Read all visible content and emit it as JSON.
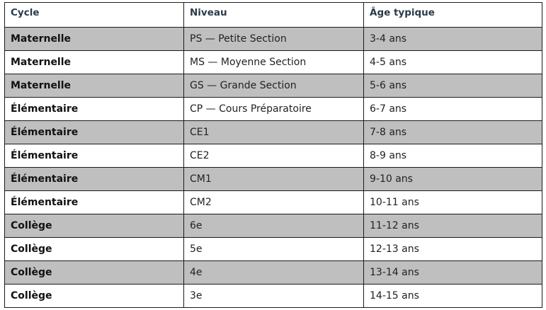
{
  "table": {
    "headers": [
      "Cycle",
      "Niveau",
      "Âge typique"
    ],
    "rows": [
      {
        "cycle": "Maternelle",
        "niveau": "PS — Petite Section",
        "age": "3-4 ans"
      },
      {
        "cycle": "Maternelle",
        "niveau": "MS — Moyenne Section",
        "age": "4-5 ans"
      },
      {
        "cycle": "Maternelle",
        "niveau": "GS — Grande Section",
        "age": "5-6 ans"
      },
      {
        "cycle": "Élémentaire",
        "niveau": "CP — Cours Préparatoire",
        "age": "6-7 ans"
      },
      {
        "cycle": "Élémentaire",
        "niveau": "CE1",
        "age": "7-8 ans"
      },
      {
        "cycle": "Élémentaire",
        "niveau": "CE2",
        "age": "8-9 ans"
      },
      {
        "cycle": "Élémentaire",
        "niveau": "CM1",
        "age": "9-10 ans"
      },
      {
        "cycle": "Élémentaire",
        "niveau": "CM2",
        "age": "10-11 ans"
      },
      {
        "cycle": "Collège",
        "niveau": "6e",
        "age": "11-12 ans"
      },
      {
        "cycle": "Collège",
        "niveau": "5e",
        "age": "12-13 ans"
      },
      {
        "cycle": "Collège",
        "niveau": "4e",
        "age": "13-14 ans"
      },
      {
        "cycle": "Collège",
        "niveau": "3e",
        "age": "14-15 ans"
      }
    ]
  },
  "colors": {
    "shaded_row": "#bfbfbf",
    "plain_row": "#ffffff",
    "border": "#1a1a1a",
    "header_text": "#2b3a4a"
  }
}
